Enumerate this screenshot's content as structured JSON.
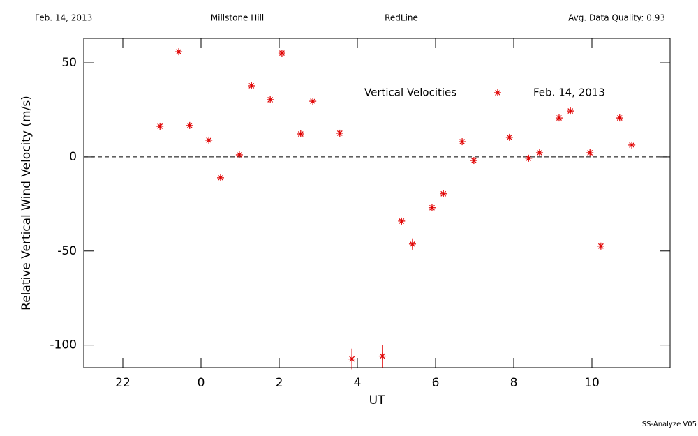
{
  "header": {
    "date": "Feb. 14, 2013",
    "site": "Millstone Hill",
    "line": "RedLine",
    "quality": "Avg. Data Quality: 0.93"
  },
  "footer": "SS-Analyze V05",
  "chart_data": {
    "type": "scatter",
    "x_label": "UT",
    "y_label": "Relative Vertical Wind Velocity (m/s)",
    "legend_title": "Vertical Velocities",
    "xlim": [
      -3,
      12
    ],
    "ylim": [
      -112,
      63
    ],
    "xticks": [
      {
        "value": -2,
        "label": "22"
      },
      0,
      2,
      4,
      6,
      8,
      10
    ],
    "yticks": [
      -100,
      -50,
      0,
      50
    ],
    "hline": 0,
    "series": [
      {
        "name": "Feb. 14, 2013",
        "color": "#e00000",
        "x": [
          -1.05,
          -0.57,
          -0.29,
          0.2,
          0.5,
          0.98,
          1.29,
          1.77,
          2.07,
          2.55,
          2.86,
          3.55,
          3.86,
          4.64,
          5.13,
          5.41,
          5.91,
          6.2,
          6.68,
          6.98,
          7.89,
          8.38,
          8.66,
          9.16,
          9.45,
          9.95,
          10.23,
          10.71,
          11.02
        ],
        "values": [
          16.3,
          55.9,
          16.7,
          8.9,
          -11.1,
          1.1,
          37.8,
          30.4,
          55.2,
          12.2,
          29.6,
          12.6,
          -107.4,
          -105.9,
          -34.1,
          -46.3,
          -27.0,
          -19.6,
          8.1,
          -1.9,
          10.4,
          -0.7,
          2.2,
          20.7,
          24.4,
          2.2,
          -47.4,
          20.7,
          6.3
        ],
        "errors": [
          1,
          1,
          1,
          1,
          1,
          1,
          1,
          1,
          1,
          1,
          1,
          1,
          5.5,
          6,
          1,
          3,
          1,
          1,
          1,
          1,
          1,
          1,
          1,
          1,
          1,
          1,
          1,
          1,
          1
        ]
      }
    ]
  }
}
